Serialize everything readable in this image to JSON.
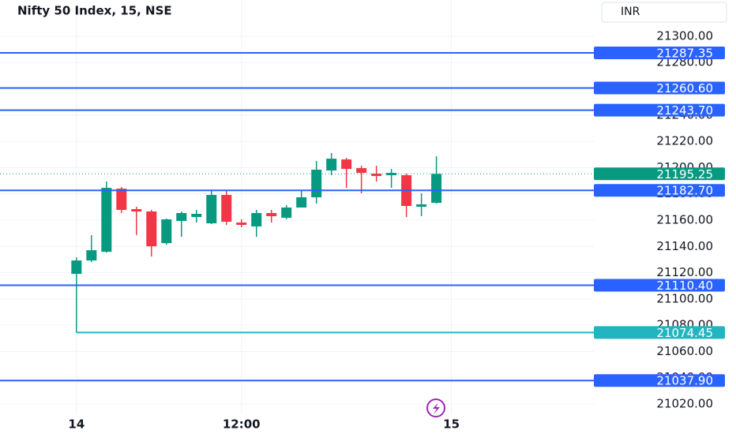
{
  "chart_data": {
    "type": "candlestick",
    "title": "Nifty 50 Index, 15, NSE",
    "currency": "INR",
    "up_color": "#089981",
    "down_color": "#f23645",
    "grid": true,
    "open": [
      21119.1,
      21129.3,
      21135.9,
      21184.0,
      21168.4,
      21166.6,
      21142.5,
      21159.4,
      21162.4,
      21157.6,
      21179.2,
      21158.2,
      21155.2,
      21165.4,
      21161.8,
      21169.6,
      21177.4,
      21197.8,
      21206.2,
      21199.6,
      21195.4,
      21194.2,
      21194.2,
      21170.2,
      21173.2
    ],
    "high": [
      21131.7,
      21148.6,
      21189.4,
      21185.2,
      21170.2,
      21167.8,
      21161.2,
      21166.6,
      21167.8,
      21182.2,
      21182.2,
      21160.6,
      21167.8,
      21167.8,
      21171.4,
      21182.2,
      21205.0,
      21211.1,
      21207.4,
      21201.4,
      21201.4,
      21199.0,
      21195.4,
      21180.4,
      21208.6
    ],
    "low": [
      21074.45,
      21128.1,
      21135.3,
      21165.4,
      21148.6,
      21132.3,
      21141.3,
      21147.3,
      21158.2,
      21157.0,
      21156.4,
      21154.6,
      21147.3,
      21158.2,
      21160.6,
      21171.4,
      21172.6,
      21194.2,
      21184.6,
      21180.4,
      21189.4,
      21184.6,
      21162.4,
      21163.0,
      21172.6
    ],
    "close": [
      21129.3,
      21137.1,
      21184.6,
      21167.8,
      21166.6,
      21140.1,
      21160.6,
      21165.4,
      21164.8,
      21179.2,
      21158.8,
      21156.4,
      21165.4,
      21163.0,
      21169.6,
      21177.4,
      21198.4,
      21206.8,
      21199.0,
      21196.0,
      21193.6,
      21196.0,
      21170.8,
      21172.0,
      21195.25
    ],
    "xlim": [
      -5.1,
      34.5
    ],
    "xticks": [
      {
        "value": 0,
        "label": "14"
      },
      {
        "value": 11,
        "label": "12:00"
      },
      {
        "value": 25,
        "label": "15"
      }
    ],
    "ylim": [
      21012.2,
      21327.6
    ],
    "yticks": [
      {
        "value": 21020,
        "label": "21020.00"
      },
      {
        "value": 21040,
        "label": "21040.00"
      },
      {
        "value": 21060,
        "label": "21060.00"
      },
      {
        "value": 21080,
        "label": "21080.00"
      },
      {
        "value": 21100,
        "label": "21100.00"
      },
      {
        "value": 21120,
        "label": "21120.00"
      },
      {
        "value": 21140,
        "label": "21140.00"
      },
      {
        "value": 21160,
        "label": "21160.00"
      },
      {
        "value": 21180,
        "label": "21180.00"
      },
      {
        "value": 21200,
        "label": "21200.00"
      },
      {
        "value": 21220,
        "label": "21220.00"
      },
      {
        "value": 21240,
        "label": "21240.00"
      },
      {
        "value": 21260,
        "label": "21260.00"
      },
      {
        "value": 21280,
        "label": "21280.00"
      },
      {
        "value": 21300,
        "label": "21300.00"
      }
    ],
    "levels": [
      {
        "value": 21287.35,
        "label": "21287.35",
        "color": "#2962ff"
      },
      {
        "value": 21260.6,
        "label": "21260.60",
        "color": "#2962ff"
      },
      {
        "value": 21243.7,
        "label": "21243.70",
        "color": "#2962ff"
      },
      {
        "value": 21182.7,
        "label": "21182.70",
        "color": "#2962ff"
      },
      {
        "value": 21110.4,
        "label": "21110.40",
        "color": "#2962ff"
      },
      {
        "value": 21074.45,
        "label": "21074.45",
        "color": "#22b5c0"
      },
      {
        "value": 21037.9,
        "label": "21037.90",
        "color": "#2962ff"
      }
    ],
    "last_price": {
      "value": 21195.25,
      "label": "21195.25",
      "color": "#089981"
    }
  }
}
